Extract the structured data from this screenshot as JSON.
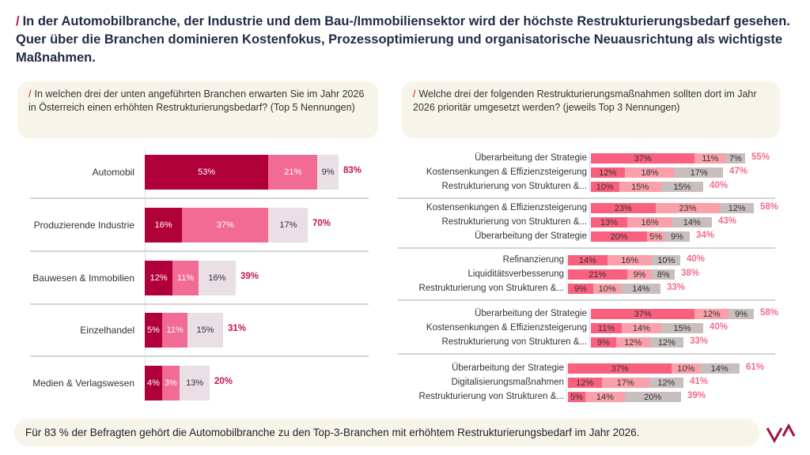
{
  "title": {
    "slash": "/",
    "text": "In der Automobilbranche, der Industrie und dem Bau-/Immobiliensektor wird der höchste Restrukturierungsbedarf gesehen. Quer über die Branchen dominieren Kostenfokus, Prozessoptimierung und organisatorische Neuausrichtung als wichtigste Maßnahmen."
  },
  "left_question": {
    "slash": "/",
    "text": "In welchen drei der unten angeführten Branchen erwarten Sie im Jahr 2026 in Österreich einen erhöhten Restrukturierungsbedarf? (Top 5 Nennungen)"
  },
  "right_question": {
    "slash": "/",
    "text": "Welche drei der folgenden Restrukturierungsmaßnahmen sollten dort im Jahr 2026 prioritär umgesetzt werden? (jeweils Top 3 Nennungen)"
  },
  "colors": {
    "left": [
      "#b0003a",
      "#f26b94",
      "#e9dfe5"
    ],
    "left_total": "#c0174f",
    "right": [
      "#f8607e",
      "#f9a0aa",
      "#c9bebe"
    ],
    "right_total": "#f06e8c"
  },
  "chart_data": [
    {
      "type": "bar",
      "orientation": "horizontal",
      "stacked": true,
      "categories": [
        "Automobil",
        "Produzierende Industrie",
        "Bauwesen & Immobilien",
        "Einzelhandel",
        "Medien & Verlagswesen"
      ],
      "series": [
        {
          "values": [
            53,
            16,
            12,
            5,
            4
          ]
        },
        {
          "values": [
            21,
            37,
            11,
            11,
            3
          ]
        },
        {
          "values": [
            9,
            17,
            16,
            15,
            13
          ]
        }
      ],
      "totals": [
        "83%",
        "70%",
        "39%",
        "31%",
        "20%"
      ]
    },
    {
      "type": "bar",
      "orientation": "horizontal",
      "stacked": true,
      "groups": [
        {
          "items": [
            {
              "label": "Überarbeitung der Strategie",
              "values": [
                37,
                11,
                7
              ],
              "total": "55%"
            },
            {
              "label": "Kostensenkungen & Effizienzsteigerung",
              "values": [
                12,
                18,
                17
              ],
              "total": "47%"
            },
            {
              "label": "Restrukturierung von Strukturen &...",
              "values": [
                10,
                15,
                15
              ],
              "total": "40%"
            }
          ]
        },
        {
          "items": [
            {
              "label": "Kostensenkungen & Effizienzsteigerung",
              "values": [
                23,
                23,
                12
              ],
              "total": "58%"
            },
            {
              "label": "Restrukturierung von Strukturen &...",
              "values": [
                13,
                16,
                14
              ],
              "total": "43%"
            },
            {
              "label": "Überarbeitung der Strategie",
              "values": [
                20,
                5,
                9
              ],
              "total": "34%"
            }
          ]
        },
        {
          "items": [
            {
              "label": "Refinanzierung",
              "values": [
                14,
                16,
                10
              ],
              "total": "40%"
            },
            {
              "label": "Liquiditätsverbesserung",
              "values": [
                21,
                9,
                8
              ],
              "total": "38%"
            },
            {
              "label": "Restrukturierung von Strukturen &...",
              "values": [
                9,
                10,
                14
              ],
              "total": "33%"
            }
          ]
        },
        {
          "items": [
            {
              "label": "Überarbeitung der Strategie",
              "values": [
                37,
                12,
                9
              ],
              "total": "58%"
            },
            {
              "label": "Kostensenkungen & Effizienzsteigerung",
              "values": [
                11,
                14,
                15
              ],
              "total": "40%"
            },
            {
              "label": "Restrukturierung von Strukturen &...",
              "values": [
                9,
                12,
                12
              ],
              "total": "33%"
            }
          ]
        },
        {
          "items": [
            {
              "label": "Überarbeitung der Strategie",
              "values": [
                37,
                10,
                14
              ],
              "total": "61%"
            },
            {
              "label": "Digitalisierungsmaßnahmen",
              "values": [
                12,
                17,
                12
              ],
              "total": "41%"
            },
            {
              "label": "Restrukturierung von Strukturen &...",
              "values": [
                5,
                14,
                20
              ],
              "total": "39%"
            }
          ]
        }
      ]
    }
  ],
  "footer": {
    "text": "Für 83 % der Befragten gehört die Automobilbranche zu den Top-3-Branchen mit erhöhtem Restrukturierungsbedarf im Jahr 2026."
  },
  "logo": {
    "text": "VA"
  }
}
